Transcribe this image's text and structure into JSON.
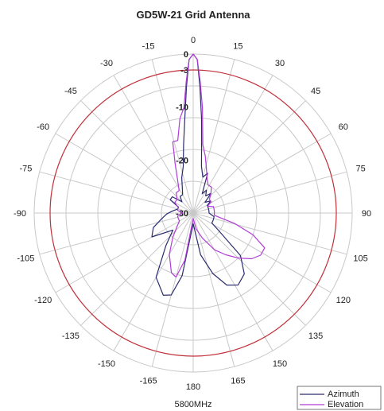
{
  "chart_data": {
    "type": "polar-line",
    "title": "GD5W-21 Grid Antenna",
    "frequency_label": "5800MHz",
    "angle_ticks": [
      0,
      15,
      30,
      45,
      60,
      75,
      90,
      105,
      120,
      135,
      150,
      165,
      180,
      -165,
      -150,
      -135,
      -120,
      -105,
      -90,
      -75,
      -60,
      -45,
      -30,
      -15
    ],
    "db_ticks": [
      "0",
      "-3",
      "-10",
      "-20",
      "-30"
    ],
    "rlim": [
      -30,
      0
    ],
    "reference_circle_db": -3,
    "grid": true,
    "legend_position": "bottom-right",
    "colors": {
      "grid": "#c8c8c8",
      "reference": "#c0313a",
      "azimuth": "#2b2c6e",
      "elevation": "#b03cd8"
    },
    "series": [
      {
        "name": "Azimuth",
        "color": "#2b2c6e",
        "points": [
          [
            -180,
            -28
          ],
          [
            -170,
            -18
          ],
          [
            -165,
            -14
          ],
          [
            -160,
            -13.5
          ],
          [
            -150,
            -16
          ],
          [
            -140,
            -22
          ],
          [
            -130,
            -25
          ],
          [
            -120,
            -21
          ],
          [
            -110,
            -22
          ],
          [
            -100,
            -24
          ],
          [
            -92,
            -25
          ],
          [
            -85,
            -26
          ],
          [
            -75,
            -27
          ],
          [
            -68,
            -27
          ],
          [
            -60,
            -25
          ],
          [
            -52,
            -25
          ],
          [
            -45,
            -27
          ],
          [
            -38,
            -26
          ],
          [
            -30,
            -26
          ],
          [
            -24,
            -25
          ],
          [
            -18,
            -23
          ],
          [
            -12,
            -21
          ],
          [
            -8,
            -17
          ],
          [
            -5,
            -12
          ],
          [
            -3,
            -6
          ],
          [
            -1.5,
            -1
          ],
          [
            0,
            0
          ],
          [
            1.5,
            -1
          ],
          [
            3,
            -6
          ],
          [
            5,
            -12
          ],
          [
            7,
            -17
          ],
          [
            10,
            -21
          ],
          [
            15,
            -23
          ],
          [
            20,
            -22
          ],
          [
            25,
            -26
          ],
          [
            30,
            -25
          ],
          [
            36,
            -26
          ],
          [
            42,
            -25
          ],
          [
            48,
            -27
          ],
          [
            55,
            -26
          ],
          [
            62,
            -27
          ],
          [
            70,
            -27
          ],
          [
            80,
            -27
          ],
          [
            90,
            -27
          ],
          [
            100,
            -26
          ],
          [
            110,
            -26
          ],
          [
            118,
            -26
          ],
          [
            125,
            -24
          ],
          [
            132,
            -18
          ],
          [
            140,
            -15
          ],
          [
            148,
            -14
          ],
          [
            155,
            -15
          ],
          [
            162,
            -18
          ],
          [
            170,
            -22
          ],
          [
            180,
            -28
          ]
        ]
      },
      {
        "name": "Elevation",
        "color": "#b03cd8",
        "points": [
          [
            -180,
            -29
          ],
          [
            -170,
            -21
          ],
          [
            -165,
            -17.5
          ],
          [
            -160,
            -18
          ],
          [
            -150,
            -21
          ],
          [
            -140,
            -24
          ],
          [
            -130,
            -26
          ],
          [
            -120,
            -27
          ],
          [
            -110,
            -27
          ],
          [
            -100,
            -27
          ],
          [
            -90,
            -28
          ],
          [
            -80,
            -27
          ],
          [
            -70,
            -27
          ],
          [
            -60,
            -26
          ],
          [
            -50,
            -26
          ],
          [
            -40,
            -25
          ],
          [
            -32,
            -25
          ],
          [
            -25,
            -23
          ],
          [
            -20,
            -20
          ],
          [
            -16,
            -16
          ],
          [
            -12,
            -16
          ],
          [
            -8,
            -12
          ],
          [
            -5,
            -10
          ],
          [
            -3,
            -5
          ],
          [
            -1.5,
            -1
          ],
          [
            0,
            0
          ],
          [
            1.5,
            -1
          ],
          [
            3,
            -5
          ],
          [
            5,
            -10
          ],
          [
            8,
            -17
          ],
          [
            12,
            -19
          ],
          [
            16,
            -21
          ],
          [
            22,
            -23
          ],
          [
            28,
            -24
          ],
          [
            35,
            -24
          ],
          [
            42,
            -25
          ],
          [
            50,
            -26
          ],
          [
            58,
            -26
          ],
          [
            65,
            -27
          ],
          [
            72,
            -26
          ],
          [
            80,
            -26
          ],
          [
            88,
            -26
          ],
          [
            96,
            -26
          ],
          [
            104,
            -22
          ],
          [
            110,
            -18
          ],
          [
            116,
            -15
          ],
          [
            122,
            -15
          ],
          [
            128,
            -16
          ],
          [
            135,
            -18
          ],
          [
            142,
            -20
          ],
          [
            150,
            -22
          ],
          [
            160,
            -25
          ],
          [
            170,
            -27
          ],
          [
            180,
            -29
          ]
        ]
      }
    ]
  }
}
